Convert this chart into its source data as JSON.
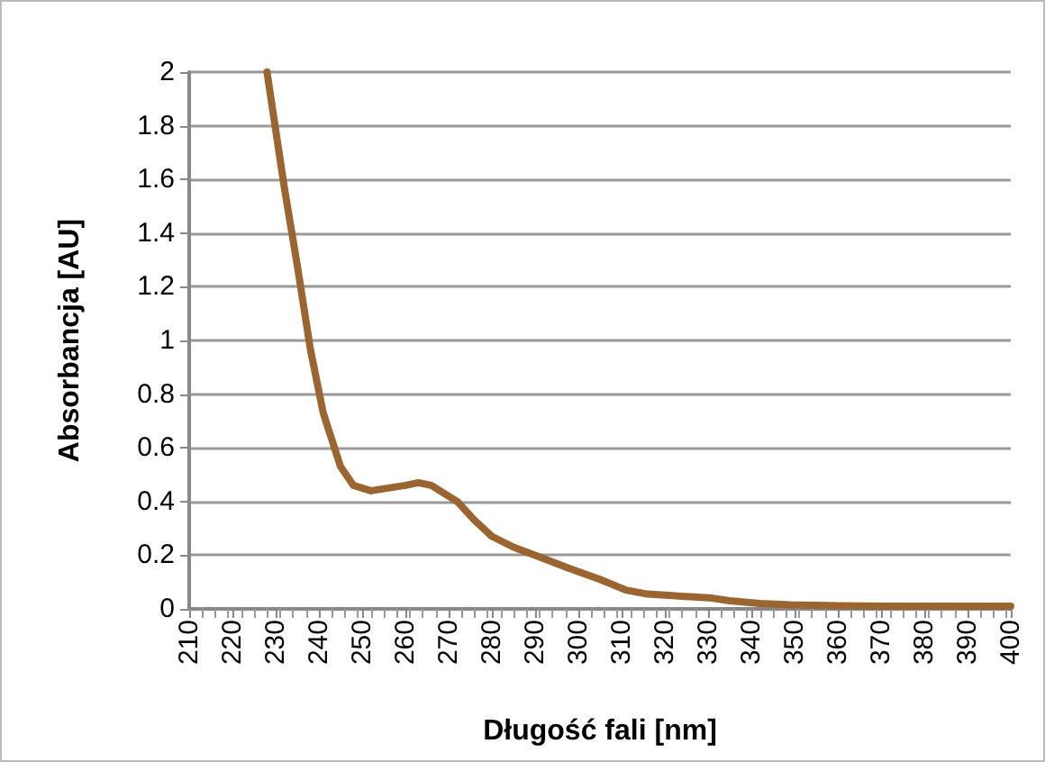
{
  "chart_data": {
    "type": "line",
    "xlabel": "Długość fali [nm]",
    "ylabel": "Absorbancja [AU]",
    "xlim": [
      210,
      400
    ],
    "xticks": [
      210,
      220,
      230,
      240,
      250,
      260,
      270,
      280,
      290,
      300,
      310,
      320,
      330,
      340,
      350,
      360,
      370,
      380,
      390,
      400
    ],
    "ylim": [
      0,
      2
    ],
    "yticks": [
      0,
      0.2,
      0.4,
      0.6,
      0.8,
      1,
      1.2,
      1.4,
      1.6,
      1.8,
      2
    ],
    "grid": "y",
    "marker": "none",
    "line_style": "solid",
    "series": [
      {
        "color": "#9a6530",
        "x": [
          228,
          232,
          235,
          238,
          241,
          245,
          248,
          252,
          256,
          260,
          263,
          266,
          268,
          272,
          276,
          280,
          285,
          290,
          298,
          305,
          311,
          316,
          321,
          326,
          331,
          335,
          342,
          349,
          360,
          370,
          385,
          400
        ],
        "values": [
          2,
          1.57,
          1.28,
          0.97,
          0.73,
          0.53,
          0.46,
          0.44,
          0.45,
          0.46,
          0.47,
          0.46,
          0.44,
          0.4,
          0.33,
          0.27,
          0.23,
          0.2,
          0.15,
          0.11,
          0.07,
          0.055,
          0.05,
          0.045,
          0.04,
          0.03,
          0.02,
          0.015,
          0.012,
          0.01,
          0.01,
          0.01
        ]
      }
    ]
  }
}
